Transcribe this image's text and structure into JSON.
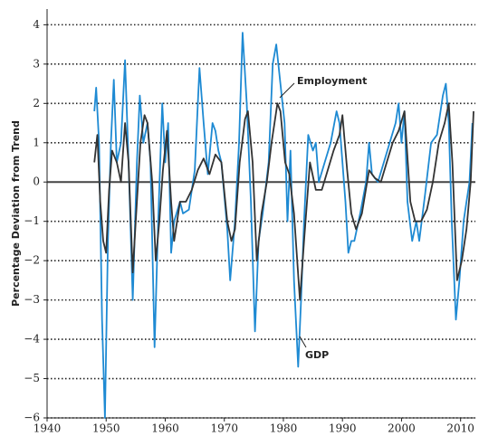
{
  "chart_data": {
    "type": "line",
    "y_label": "Percentage Deviation from Trend",
    "xlim": [
      1940,
      2012.5
    ],
    "xticks": [
      1940,
      1950,
      1960,
      1970,
      1980,
      1990,
      2000,
      2010
    ],
    "ylim": [
      -6,
      4.4
    ],
    "yticks": [
      {
        "value": -6,
        "label": "−6"
      },
      {
        "value": -5,
        "label": "−5"
      },
      {
        "value": -4,
        "label": "−4"
      },
      {
        "value": -3,
        "label": "−3"
      },
      {
        "value": -2,
        "label": "−2"
      },
      {
        "value": -1,
        "label": "−1"
      },
      0,
      1,
      2,
      3,
      4
    ],
    "grid": true,
    "series": [
      {
        "name": "GDP",
        "color": "#1e8ad3",
        "x": [
          1948,
          1948.3,
          1948.8,
          1949.3,
          1949.8,
          1950.3,
          1950.8,
          1951.3,
          1951.8,
          1952.5,
          1953.2,
          1953.8,
          1954.5,
          1955.2,
          1955.7,
          1956.3,
          1957,
          1957.5,
          1958.2,
          1958.8,
          1959.5,
          1960,
          1960.5,
          1961,
          1961.5,
          1962.5,
          1963,
          1964,
          1965,
          1965.8,
          1966.5,
          1967.2,
          1968,
          1968.5,
          1969,
          1969.5,
          1970.5,
          1971,
          1971.8,
          1972.5,
          1973.1,
          1973.8,
          1974.5,
          1975.2,
          1975.8,
          1976.5,
          1977.5,
          1978.2,
          1978.8,
          1979.5,
          1980.2,
          1980.7,
          1981.2,
          1981.8,
          1982.5,
          1983,
          1983.5,
          1984.2,
          1985,
          1985.5,
          1986,
          1987,
          1988,
          1989,
          1989.5,
          1990,
          1990.5,
          1991,
          1991.5,
          1992,
          1993,
          1994,
          1994.5,
          1995,
          1996,
          1997,
          1998,
          1999,
          1999.5,
          2000,
          2000.5,
          2001,
          2001.8,
          2002.5,
          2003,
          2004,
          2005,
          2006,
          2007,
          2007.5,
          2008,
          2008.5,
          2009.2,
          2009.8,
          2010.5,
          2011,
          2011.5,
          2012
        ],
        "values": [
          1.8,
          2.4,
          1.0,
          -3.5,
          -6.0,
          -1.5,
          1.0,
          2.6,
          0.5,
          1.0,
          3.1,
          0.5,
          -3.0,
          0.5,
          2.2,
          1.0,
          1.5,
          0.5,
          -4.2,
          -1.0,
          2.0,
          0.5,
          1.5,
          -1.8,
          -1.0,
          -0.5,
          -0.8,
          -0.7,
          0.3,
          2.9,
          1.5,
          0.2,
          1.5,
          1.3,
          0.8,
          0.5,
          -1.2,
          -2.5,
          -1.0,
          1.0,
          3.8,
          2.0,
          -0.5,
          -3.8,
          -1.5,
          -0.8,
          0.5,
          3.0,
          3.5,
          2.5,
          1.5,
          -1.0,
          0.8,
          -2.5,
          -4.7,
          -3.0,
          -1.0,
          1.2,
          0.8,
          1.0,
          0.0,
          0.5,
          1.0,
          1.8,
          1.5,
          0.5,
          -0.5,
          -1.8,
          -1.5,
          -1.5,
          -0.8,
          0.0,
          1.0,
          0.2,
          0.0,
          0.5,
          1.0,
          1.5,
          2.0,
          1.0,
          1.8,
          -0.5,
          -1.5,
          -1.0,
          -1.5,
          -0.3,
          1.0,
          1.2,
          2.2,
          2.5,
          1.5,
          -1.0,
          -3.5,
          -2.5,
          -1.0,
          -0.5,
          0.0,
          1.5
        ]
      },
      {
        "name": "Employment",
        "color": "#333333",
        "x": [
          1948,
          1948.5,
          1949,
          1949.5,
          1950,
          1950.5,
          1951,
          1951.8,
          1952.5,
          1953.2,
          1953.8,
          1954.5,
          1955,
          1955.8,
          1956.5,
          1957,
          1957.8,
          1958.4,
          1959,
          1959.6,
          1960.3,
          1961,
          1961.5,
          1962.5,
          1963.5,
          1964.5,
          1965.5,
          1966.5,
          1967.5,
          1968.5,
          1969.5,
          1970.5,
          1971.2,
          1971.8,
          1972.6,
          1973.5,
          1974,
          1974.8,
          1975.5,
          1976.3,
          1977.2,
          1978,
          1979,
          1979.5,
          1980.3,
          1981,
          1981.8,
          1982.8,
          1983.5,
          1984.5,
          1985.5,
          1986.5,
          1987.5,
          1988.5,
          1989.5,
          1990,
          1990.8,
          1991.5,
          1992.3,
          1993.3,
          1994.5,
          1995.5,
          1996.5,
          1997.5,
          1998.5,
          1999.5,
          2000.5,
          2001.5,
          2002.3,
          2003.3,
          2004.3,
          2005.3,
          2006.3,
          2007.3,
          2008,
          2008.6,
          2009.4,
          2010.2,
          2011,
          2011.7,
          2012.2
        ],
        "values": [
          0.5,
          1.2,
          -0.5,
          -1.5,
          -1.8,
          -0.2,
          0.8,
          0.5,
          0.0,
          1.5,
          0.5,
          -2.3,
          -1.0,
          1.0,
          1.7,
          1.5,
          0.0,
          -2.0,
          -1.0,
          0.3,
          1.3,
          -0.5,
          -1.5,
          -0.5,
          -0.5,
          -0.2,
          0.3,
          0.6,
          0.2,
          0.7,
          0.5,
          -1.0,
          -1.5,
          -1.2,
          0.5,
          1.6,
          1.8,
          0.5,
          -2.0,
          -0.8,
          0.0,
          1.0,
          2.0,
          1.8,
          0.5,
          0.2,
          -0.8,
          -3.0,
          -1.5,
          0.5,
          -0.2,
          -0.2,
          0.3,
          0.8,
          1.2,
          1.7,
          0.3,
          -0.8,
          -1.2,
          -0.8,
          0.3,
          0.1,
          0.0,
          0.5,
          1.0,
          1.3,
          1.8,
          -0.5,
          -1.0,
          -1.0,
          -0.7,
          0.0,
          1.0,
          1.5,
          2.0,
          0.5,
          -2.5,
          -2.0,
          -1.2,
          0.0,
          1.8
        ]
      }
    ]
  }
}
